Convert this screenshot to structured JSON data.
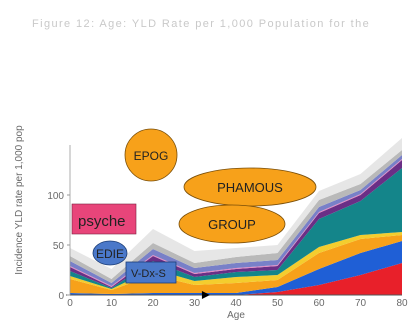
{
  "header_text": "Figure 12: Age: YLD Rate per 1,000 Population for the",
  "chart_data": {
    "type": "area",
    "title": "",
    "xlabel": "Age",
    "ylabel": "Incidence YLD rate per 1,000 pop",
    "xlim": [
      0,
      80
    ],
    "ylim": [
      0,
      150
    ],
    "x": [
      0,
      10,
      20,
      30,
      40,
      50,
      60,
      70,
      80
    ],
    "x_ticks": [
      "0",
      "10",
      "20",
      "30",
      "40",
      "50",
      "60",
      "70",
      "80"
    ],
    "y_ticks": [
      "0",
      "50",
      "100"
    ],
    "series": [
      {
        "color": "#e8202a",
        "values": [
          0,
          0,
          0,
          0,
          0,
          3,
          10,
          20,
          32
        ]
      },
      {
        "color": "#1f5fd6",
        "values": [
          2,
          1,
          2,
          2,
          2,
          5,
          16,
          22,
          22
        ]
      },
      {
        "color": "#f7a11a",
        "values": [
          14,
          4,
          18,
          8,
          10,
          7,
          16,
          14,
          6
        ]
      },
      {
        "color": "#f4cd2e",
        "values": [
          3,
          1,
          6,
          4,
          6,
          5,
          6,
          4,
          3
        ]
      },
      {
        "color": "#14858a",
        "values": [
          5,
          1,
          8,
          4,
          5,
          5,
          28,
          34,
          64
        ]
      },
      {
        "color": "#6a2f86",
        "values": [
          4,
          1,
          5,
          3,
          3,
          4,
          6,
          6,
          8
        ]
      },
      {
        "color": "#e58ac2",
        "values": [
          1,
          1,
          1,
          1,
          1,
          1,
          1,
          1,
          1
        ]
      },
      {
        "color": "#7880c8",
        "values": [
          5,
          3,
          6,
          5,
          5,
          5,
          5,
          4,
          4
        ]
      },
      {
        "color": "#b9b9b9",
        "values": [
          5,
          4,
          6,
          5,
          6,
          7,
          7,
          6,
          5
        ]
      },
      {
        "color": "#e6e6e6",
        "values": [
          8,
          10,
          14,
          12,
          9,
          8,
          9,
          10,
          12
        ]
      }
    ],
    "grid": false,
    "legend": "none"
  },
  "overlays": [
    {
      "label": "EPOG",
      "shape": "circle",
      "fill": "#f7a11a"
    },
    {
      "label": "PHAMOUS",
      "shape": "ellipse",
      "fill": "#f7a11a"
    },
    {
      "label": "GROUP",
      "shape": "ellipse",
      "fill": "#f7a11a"
    },
    {
      "label": "psyche",
      "shape": "rect",
      "fill": "#e8457a"
    },
    {
      "label": "EDIE",
      "shape": "ellipse",
      "fill": "#4a78c9"
    },
    {
      "label": "V-Dx-S",
      "shape": "rect",
      "fill": "#4a78c9"
    }
  ]
}
